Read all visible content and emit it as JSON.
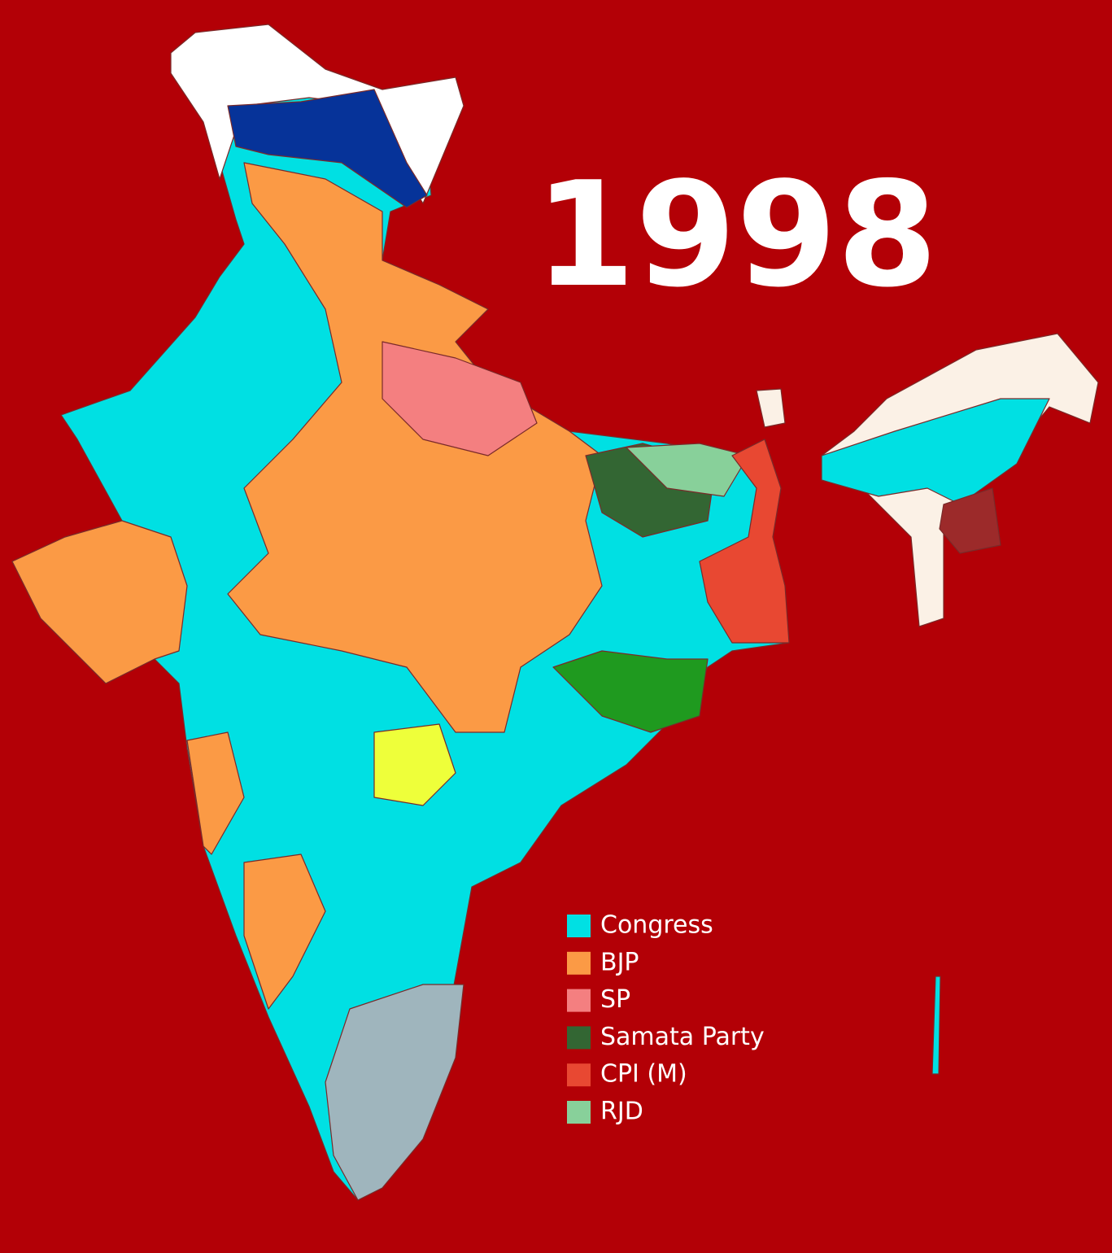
{
  "title": "1998",
  "legend": [
    {
      "label": "Congress",
      "color": "#00e0e3"
    },
    {
      "label": "BJP",
      "color": "#fb9a45"
    },
    {
      "label": "SP",
      "color": "#f47f80"
    },
    {
      "label": "Samata Party",
      "color": "#336633"
    },
    {
      "label": "CPI (M)",
      "color": "#e84832"
    },
    {
      "label": "RJD",
      "color": "#88d09a"
    }
  ]
}
